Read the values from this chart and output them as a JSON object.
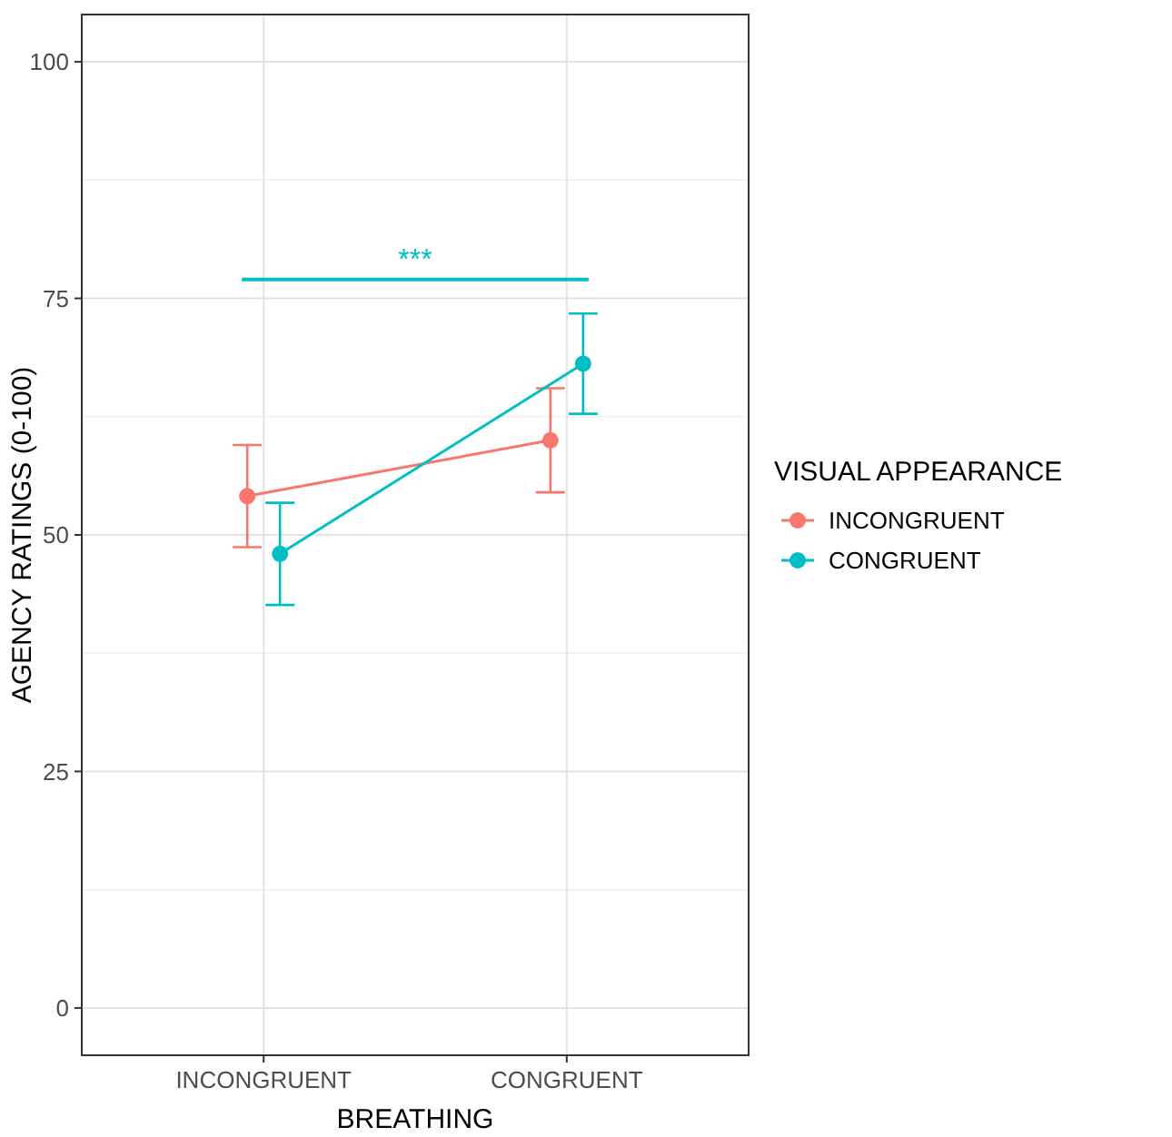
{
  "chart_data": {
    "type": "line",
    "xlabel": "BREATHING",
    "ylabel": "AGENCY RATINGS (0-100)",
    "legend_title": "VISUAL APPEARANCE",
    "categories": [
      "INCONGRUENT",
      "CONGRUENT"
    ],
    "series": [
      {
        "name": "INCONGRUENT",
        "color": "#f8766d",
        "values": [
          54.1,
          60.0
        ],
        "errors": [
          5.4,
          5.5
        ]
      },
      {
        "name": "CONGRUENT",
        "color": "#00bfc4",
        "values": [
          48.0,
          68.1
        ],
        "errors": [
          5.4,
          5.3
        ]
      }
    ],
    "ylim": [
      -5,
      105
    ],
    "yticks": [
      0,
      25,
      50,
      75,
      100
    ],
    "grid": true,
    "legend": "right",
    "marker": "circle",
    "line_style": "solid",
    "annotations": [
      "***"
    ]
  }
}
